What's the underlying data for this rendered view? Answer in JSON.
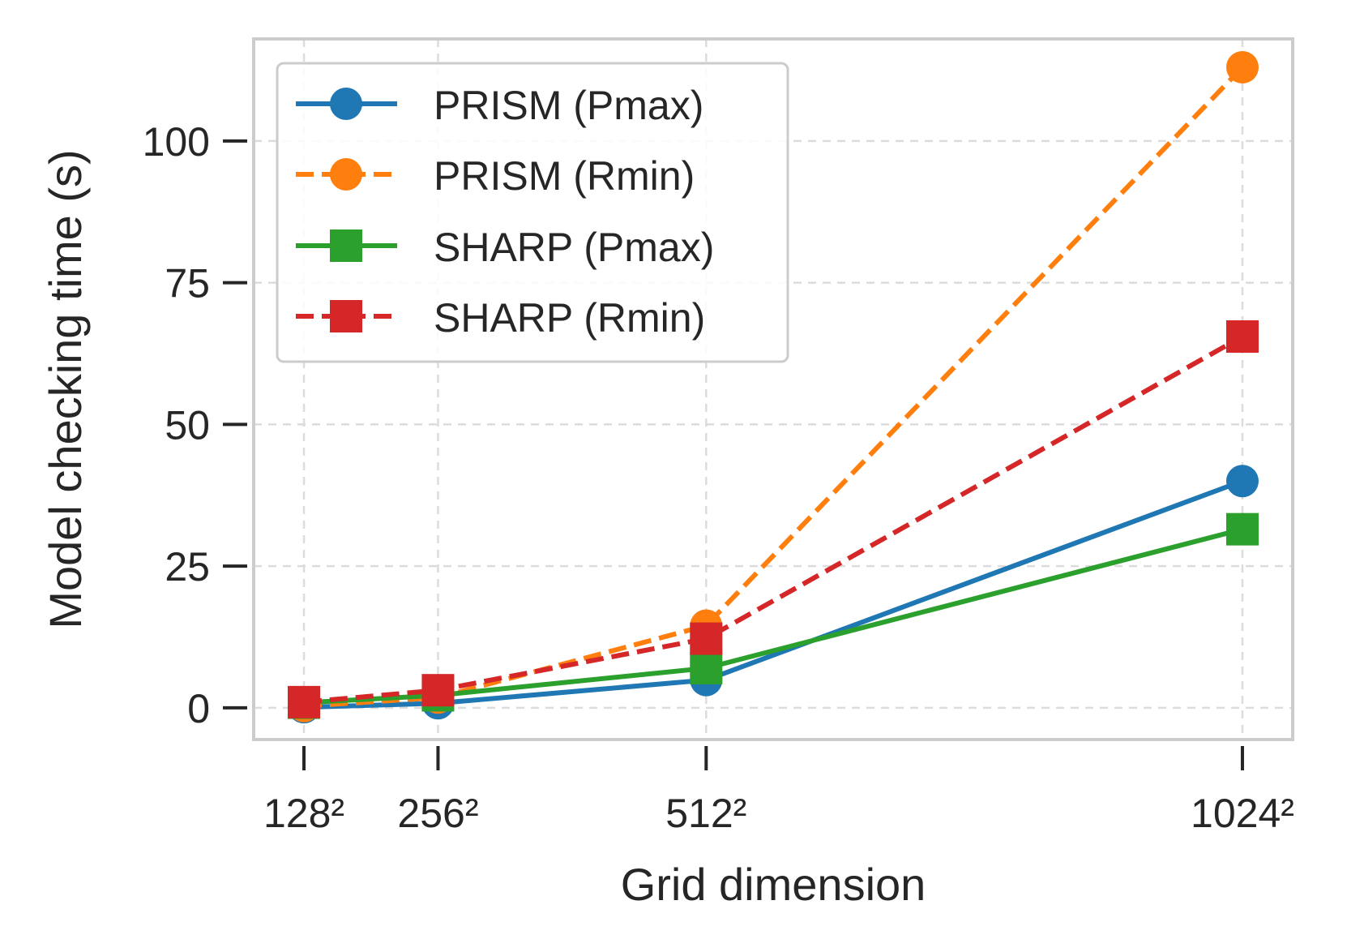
{
  "chart_data": {
    "type": "line",
    "title": "",
    "xlabel": "Grid dimension",
    "ylabel": "Model checking time (s)",
    "categories": [
      "128²",
      "256²",
      "512²",
      "1024²"
    ],
    "x": [
      128,
      256,
      512,
      1024
    ],
    "xlim": [
      80,
      1072
    ],
    "ylim": [
      -5.6,
      118
    ],
    "yticks": [
      0,
      25,
      50,
      75,
      100
    ],
    "ytick_labels": [
      "0",
      "25",
      "50",
      "75",
      "100"
    ],
    "grid": true,
    "legend_position": "top-left",
    "series": [
      {
        "name": "PRISM (Pmax)",
        "color": "#1f77b4",
        "line": "solid",
        "marker": "circle",
        "values": [
          0.1,
          0.8,
          4.9,
          40.0
        ]
      },
      {
        "name": "PRISM (Rmin)",
        "color": "#ff7f0e",
        "line": "dashed",
        "marker": "circle",
        "values": [
          0.3,
          1.8,
          14.5,
          113.0
        ]
      },
      {
        "name": "SHARP (Pmax)",
        "color": "#2ca02c",
        "line": "solid",
        "marker": "square",
        "values": [
          0.9,
          2.2,
          7.0,
          31.5
        ]
      },
      {
        "name": "SHARP (Rmin)",
        "color": "#d62728",
        "line": "dashed",
        "marker": "square",
        "values": [
          1.0,
          3.1,
          12.2,
          65.5
        ]
      }
    ]
  }
}
